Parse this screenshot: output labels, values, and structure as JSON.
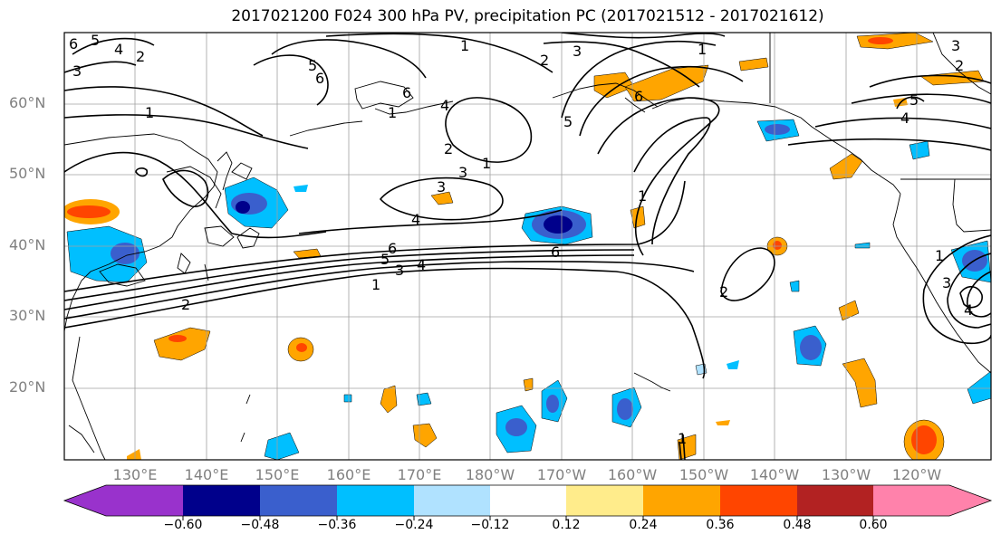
{
  "title": "2017021200 F024 300 hPa PV, precipitation PC (2017021512 - 2017021612)",
  "lat_labels": [
    "60°N",
    "50°N",
    "40°N",
    "30°N",
    "20°N"
  ],
  "lon_labels": [
    "130°E",
    "140°E",
    "150°E",
    "160°E",
    "170°E",
    "180°W",
    "170°W",
    "160°W",
    "150°W",
    "140°W",
    "130°W",
    "120°W"
  ],
  "colorbar": {
    "ticks": [
      "−0.60",
      "−0.48",
      "−0.36",
      "−0.24",
      "−0.12",
      "0.12",
      "0.24",
      "0.36",
      "0.48",
      "0.60"
    ],
    "colors": [
      "#9932cc",
      "#00008b",
      "#3a5fcd",
      "#00bfff",
      "#b0e2ff",
      "#ffffff",
      "#ffec8b",
      "#ffa500",
      "#ff4500",
      "#b22222",
      "#ff82ab"
    ]
  },
  "contour_labels": [
    "1",
    "2",
    "3",
    "4",
    "5",
    "6"
  ],
  "map_colors": {
    "contour": "#000000",
    "coast": "#000000",
    "grid": "#a0a0a0"
  }
}
